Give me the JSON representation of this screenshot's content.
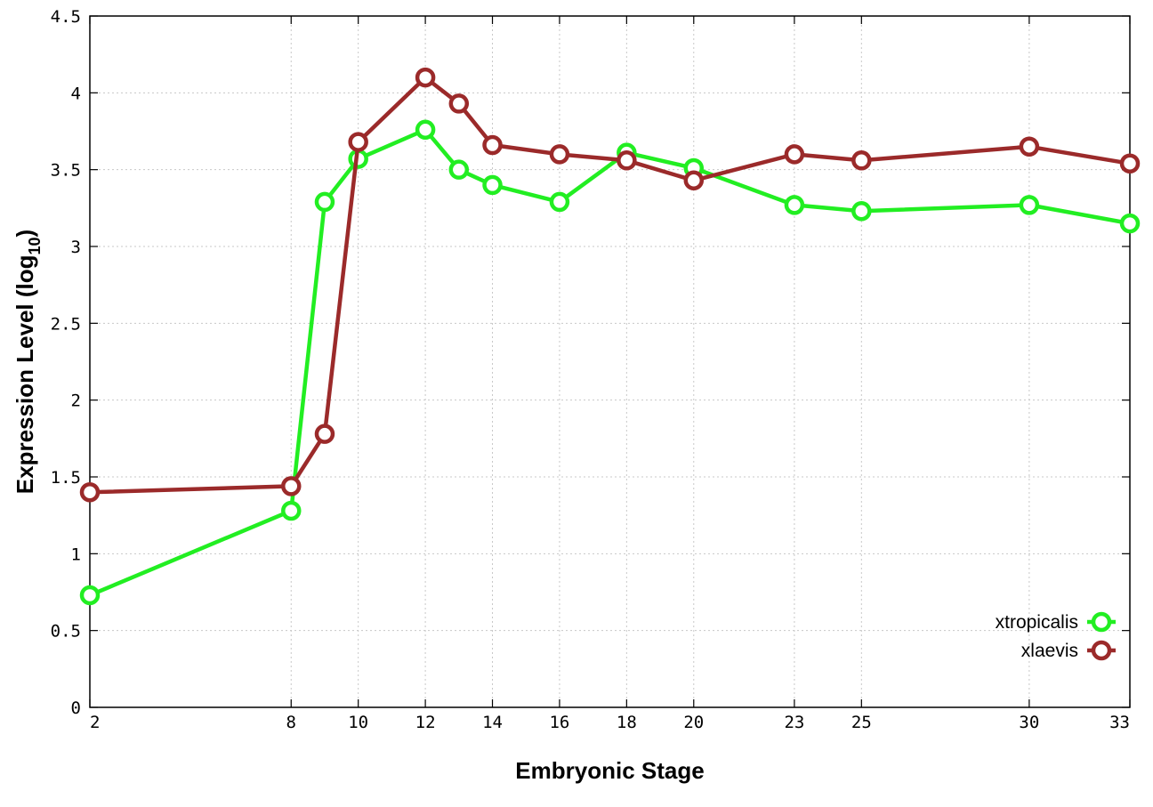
{
  "chart_data": {
    "type": "line",
    "xlabel": "Embryonic Stage",
    "ylabel": "Expression Level (log",
    "ylabel_subscript": "10",
    "ylabel_suffix": ")",
    "xlim": [
      2,
      33
    ],
    "ylim": [
      0,
      4.5
    ],
    "x_ticks": [
      2,
      8,
      10,
      12,
      14,
      16,
      18,
      20,
      23,
      25,
      30,
      33
    ],
    "y_ticks": [
      0,
      0.5,
      1,
      1.5,
      2,
      2.5,
      3,
      3.5,
      4,
      4.5
    ],
    "y_tick_labels": [
      "0",
      "0.5",
      "1",
      "1.5",
      "2",
      "2.5",
      "3",
      "3.5",
      "4",
      "4.5"
    ],
    "grid": true,
    "legend_position": "bottom-right",
    "series": [
      {
        "name": "xtropicalis",
        "color": "#22ee22",
        "x": [
          2,
          8,
          9,
          10,
          12,
          13,
          14,
          16,
          18,
          20,
          23,
          25,
          30,
          33
        ],
        "values": [
          0.73,
          1.28,
          3.29,
          3.57,
          3.76,
          3.5,
          3.4,
          3.29,
          3.61,
          3.51,
          3.27,
          3.23,
          3.27,
          3.15
        ]
      },
      {
        "name": "xlaevis",
        "color": "#9b2a2a",
        "x": [
          2,
          8,
          9,
          10,
          12,
          13,
          14,
          16,
          18,
          20,
          23,
          25,
          30,
          33
        ],
        "values": [
          1.4,
          1.44,
          1.78,
          3.68,
          4.1,
          3.93,
          3.66,
          3.6,
          3.56,
          3.43,
          3.6,
          3.56,
          3.65,
          3.54
        ]
      }
    ]
  }
}
